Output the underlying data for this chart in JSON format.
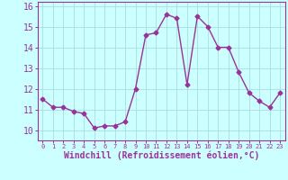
{
  "x": [
    0,
    1,
    2,
    3,
    4,
    5,
    6,
    7,
    8,
    9,
    10,
    11,
    12,
    13,
    14,
    15,
    16,
    17,
    18,
    19,
    20,
    21,
    22,
    23
  ],
  "y": [
    11.5,
    11.1,
    11.1,
    10.9,
    10.8,
    10.1,
    10.2,
    10.2,
    10.4,
    12.0,
    14.6,
    14.7,
    15.6,
    15.4,
    12.2,
    15.5,
    15.0,
    14.0,
    14.0,
    12.8,
    11.8,
    11.4,
    11.1,
    11.8
  ],
  "line_color": "#993399",
  "marker": "D",
  "markersize": 2.5,
  "linewidth": 1.0,
  "xlabel": "Windchill (Refroidissement éolien,°C)",
  "xlabel_fontsize": 7,
  "xlim": [
    -0.5,
    23.5
  ],
  "ylim": [
    9.5,
    16.2
  ],
  "yticks": [
    10,
    11,
    12,
    13,
    14,
    15,
    16
  ],
  "xticks": [
    0,
    1,
    2,
    3,
    4,
    5,
    6,
    7,
    8,
    9,
    10,
    11,
    12,
    13,
    14,
    15,
    16,
    17,
    18,
    19,
    20,
    21,
    22,
    23
  ],
  "background_color": "#ccffff",
  "grid_color": "#aadddd",
  "tick_color": "#993399",
  "label_color": "#993399",
  "ytick_fontsize": 7,
  "xtick_fontsize": 5,
  "fig_bg": "#ccffff"
}
